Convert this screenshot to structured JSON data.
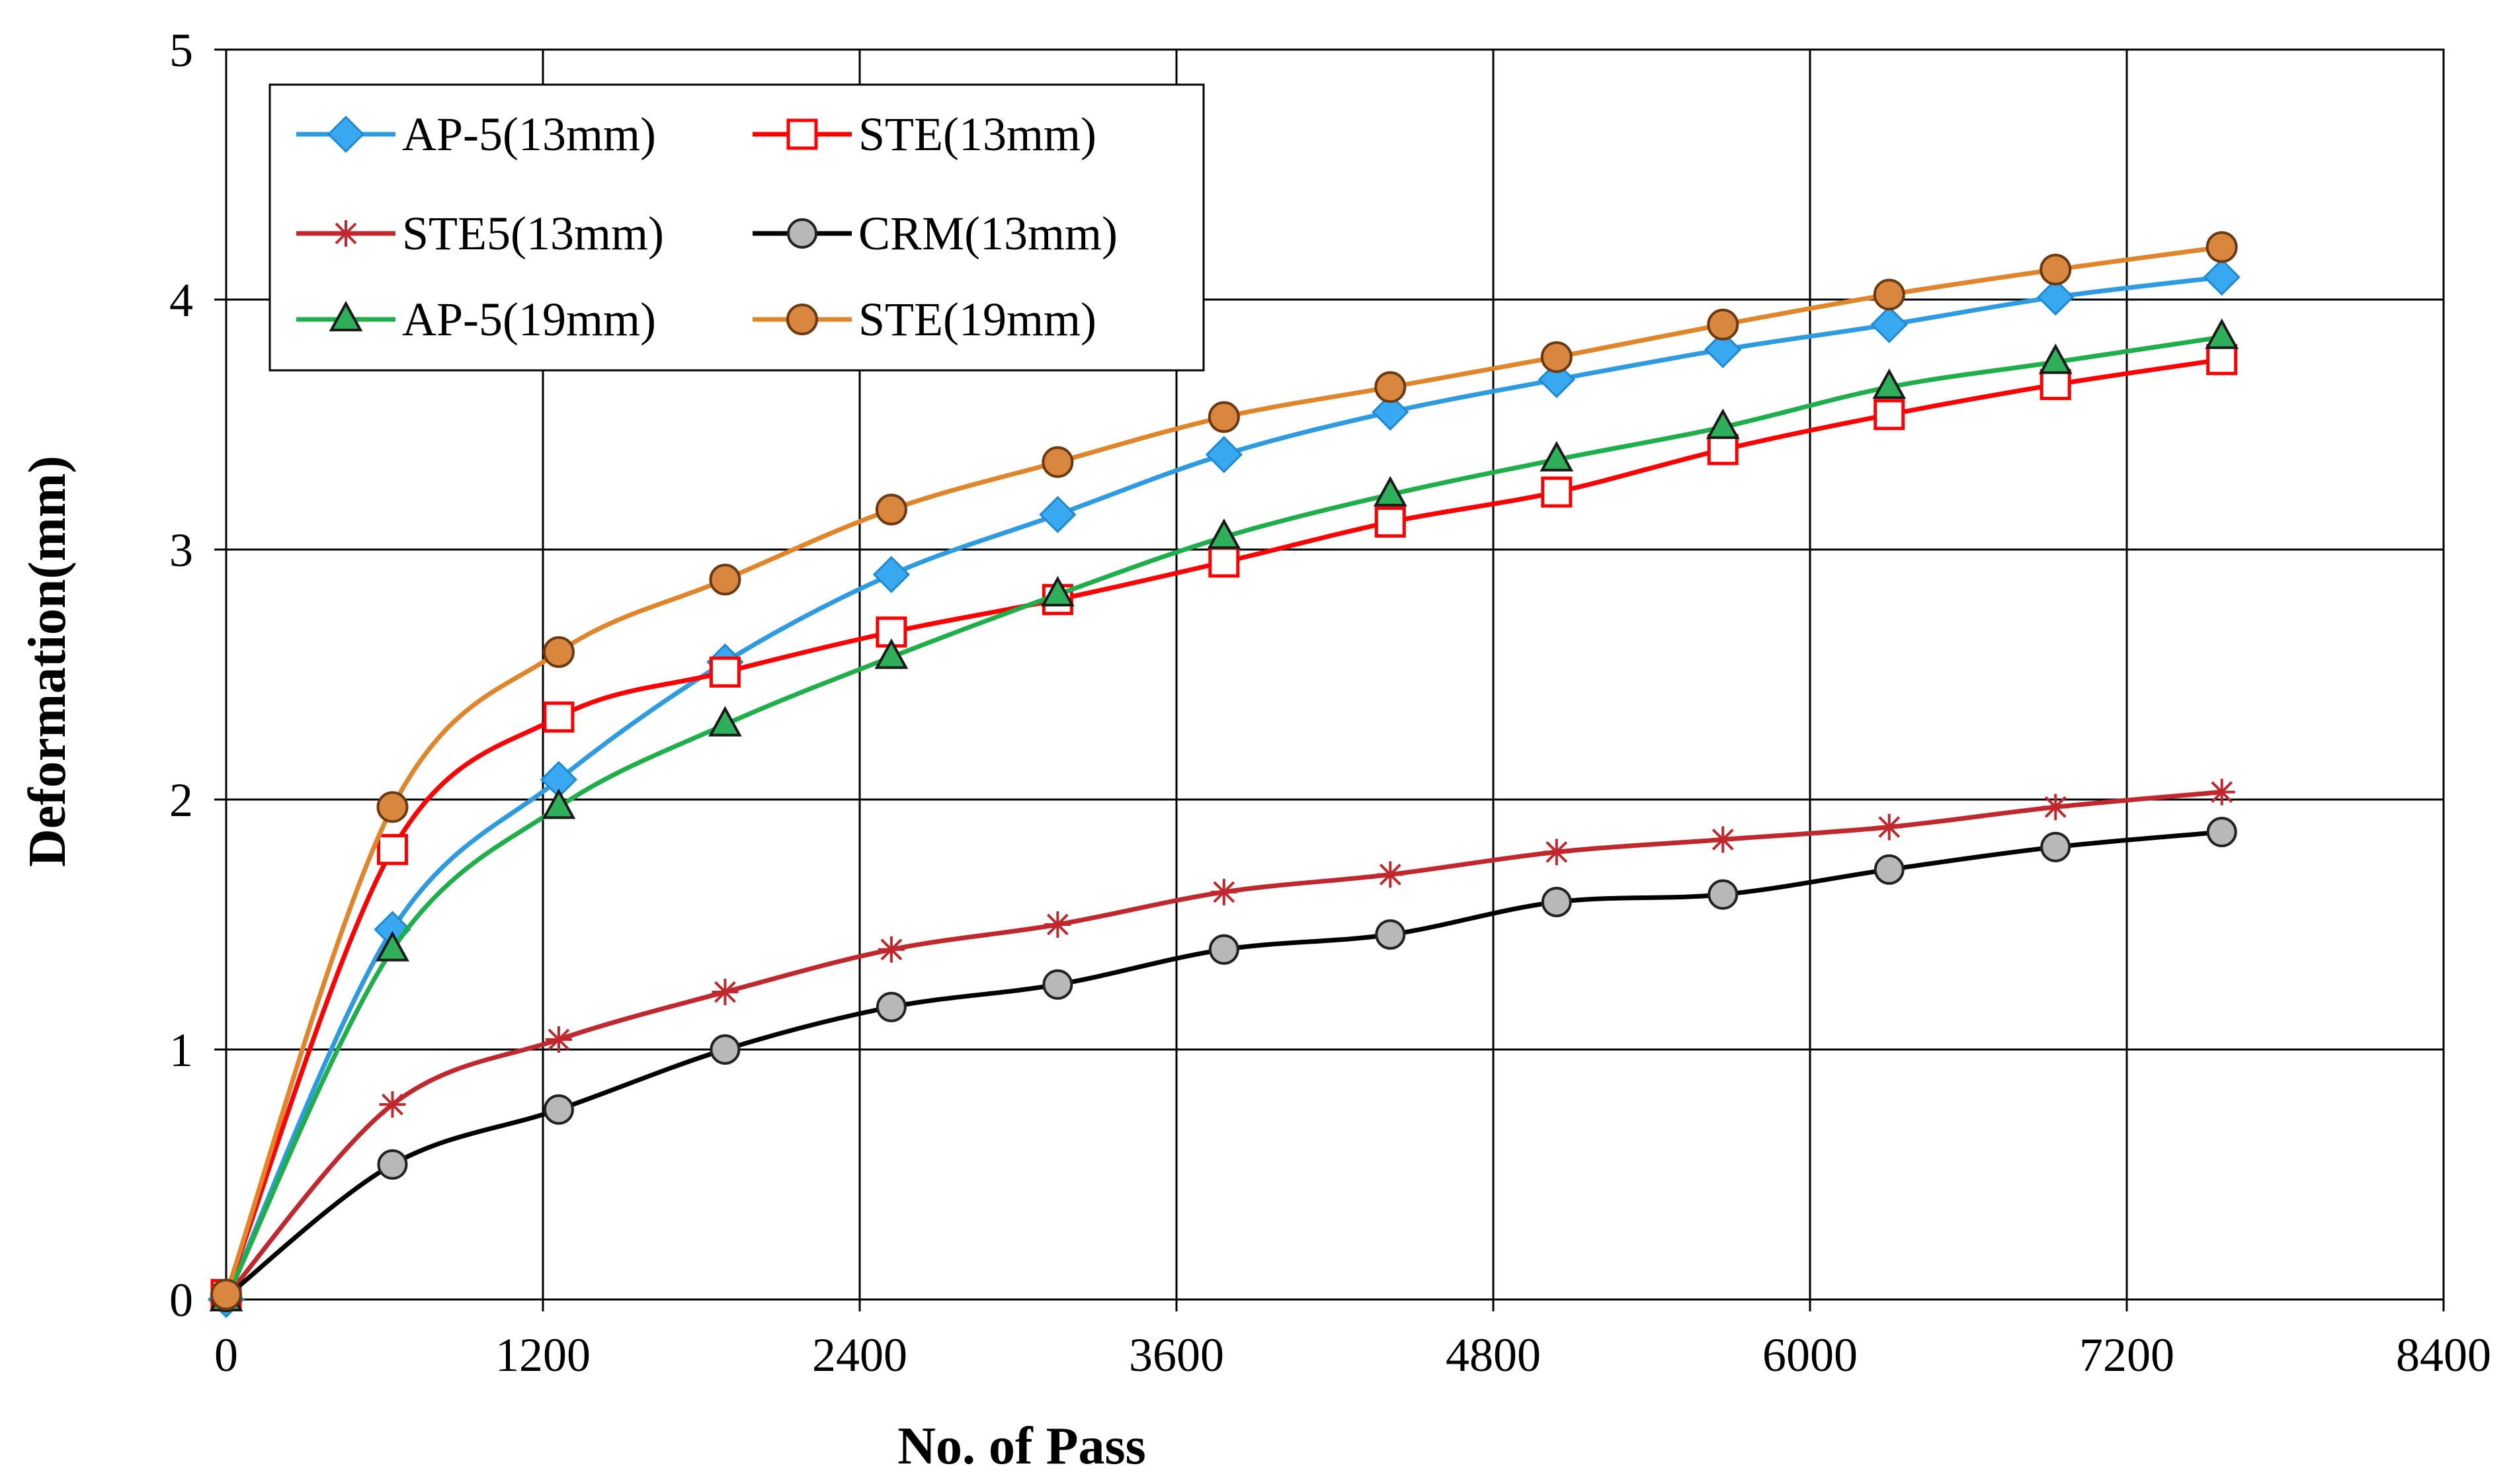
{
  "chart_data": {
    "type": "line",
    "title": "",
    "xlabel": "No. of  Pass",
    "ylabel": "Deformation(mm)",
    "xlim": [
      0,
      8400
    ],
    "ylim": [
      0,
      5
    ],
    "xticks": [
      0,
      1200,
      2400,
      3600,
      4800,
      6000,
      7200,
      8400
    ],
    "yticks": [
      0,
      1,
      2,
      3,
      4,
      5
    ],
    "xtick_labels": [
      "0",
      "1200",
      "2400",
      "3600",
      "4800",
      "6000",
      "7200",
      "8400"
    ],
    "ytick_labels": [
      "0",
      "1",
      "2",
      "3",
      "4",
      "5"
    ],
    "grid": true,
    "legend_position": "top-left",
    "x": [
      0,
      630,
      1260,
      1890,
      2520,
      3150,
      3780,
      4410,
      5040,
      5670,
      6300,
      6930,
      7560
    ],
    "series": [
      {
        "name": "AP-5(13mm)",
        "color": "#2E9BE0",
        "marker": "diamond",
        "values": [
          0,
          1.48,
          2.08,
          2.55,
          2.9,
          3.14,
          3.38,
          3.55,
          3.68,
          3.8,
          3.9,
          4.01,
          4.09
        ]
      },
      {
        "name": "STE(13mm)",
        "color": "#FF0000",
        "marker": "open-square",
        "values": [
          0.02,
          1.8,
          2.33,
          2.51,
          2.67,
          2.8,
          2.95,
          3.11,
          3.23,
          3.4,
          3.54,
          3.66,
          3.76
        ]
      },
      {
        "name": "STE5(13mm)",
        "color": "#C0282D",
        "marker": "star",
        "values": [
          0.01,
          0.78,
          1.04,
          1.23,
          1.4,
          1.5,
          1.63,
          1.7,
          1.79,
          1.84,
          1.89,
          1.97,
          2.03
        ]
      },
      {
        "name": "CRM(13mm)",
        "color": "#000000",
        "marker": "gray-circle",
        "values": [
          0.01,
          0.54,
          0.76,
          1.0,
          1.17,
          1.26,
          1.4,
          1.46,
          1.59,
          1.62,
          1.72,
          1.81,
          1.87
        ]
      },
      {
        "name": "AP-5(19mm)",
        "color": "#1FAF4A",
        "marker": "triangle",
        "values": [
          0,
          1.4,
          1.97,
          2.3,
          2.57,
          2.82,
          3.05,
          3.22,
          3.36,
          3.49,
          3.65,
          3.75,
          3.85
        ]
      },
      {
        "name": "STE(19mm)",
        "color": "#E0852A",
        "marker": "orange-circle",
        "values": [
          0.02,
          1.97,
          2.59,
          2.88,
          3.16,
          3.35,
          3.53,
          3.65,
          3.77,
          3.9,
          4.02,
          4.12,
          4.21
        ]
      }
    ]
  }
}
